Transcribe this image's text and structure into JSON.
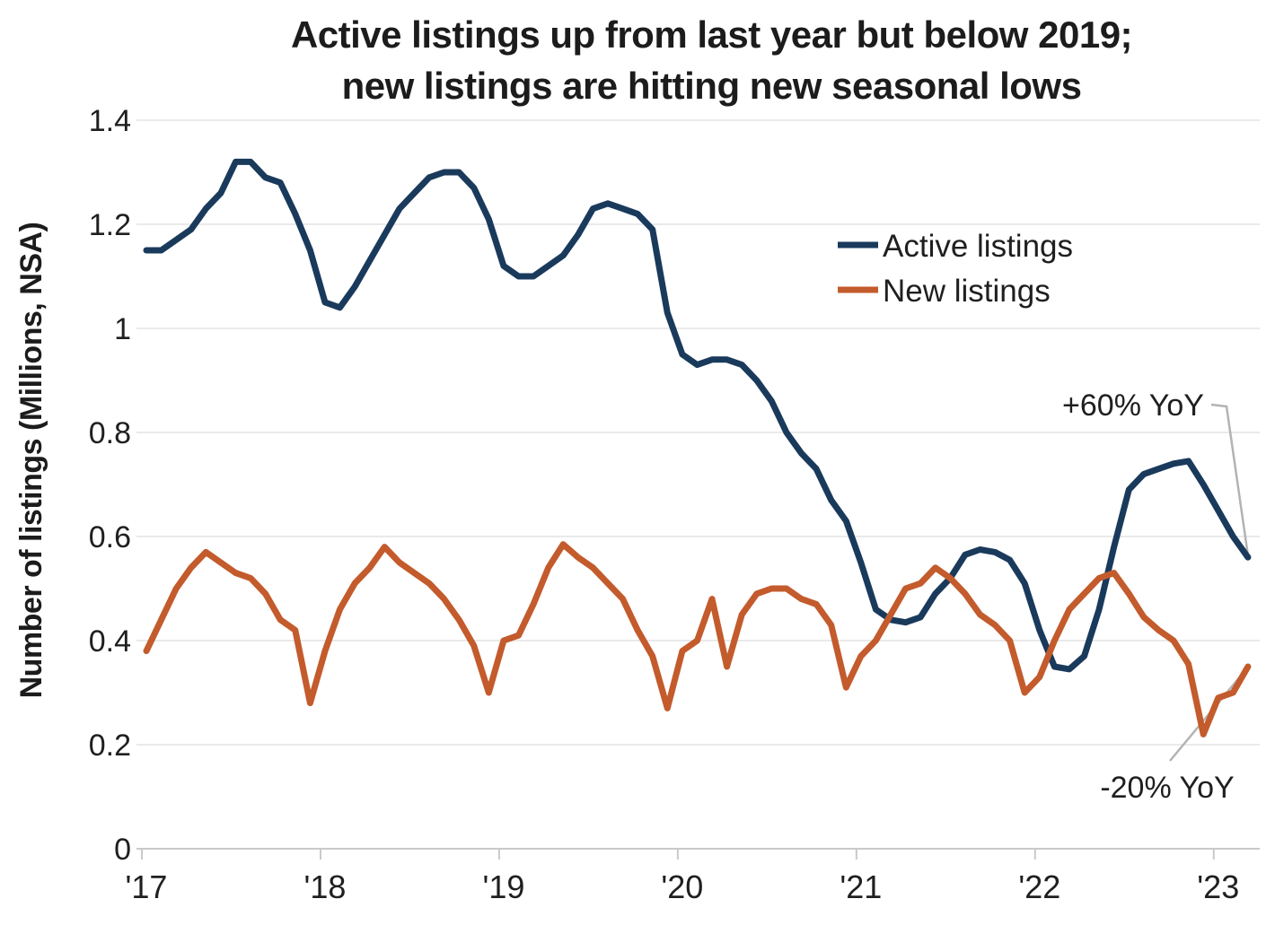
{
  "title": {
    "line1": "Active listings up from last year but below 2019;",
    "line2": "new listings are hitting new seasonal lows"
  },
  "y_axis": {
    "label": "Number of listings (Millions, NSA)",
    "tick_labels": [
      "1.4",
      "1.2",
      "1",
      "0.8",
      "0.6",
      "0.4",
      "0.2",
      "0"
    ],
    "tick_values": [
      1.4,
      1.2,
      1,
      0.8,
      0.6,
      0.4,
      0.2,
      0
    ]
  },
  "x_axis": {
    "tick_labels": [
      "'17",
      "'18",
      "'19",
      "'20",
      "'21",
      "'22",
      "'23"
    ]
  },
  "colors": {
    "active_listings": "#1a3a5c",
    "new_listings": "#c35b2c",
    "gridline": "#eaeaea",
    "axis": "#c9c9c9",
    "callout": "#b3b3b3",
    "text": "#1c1c1c"
  },
  "chart_data": {
    "type": "line",
    "frequency": "monthly",
    "x_start": "2017-01",
    "x_end": "2023-03",
    "title": "Active listings up from last year but below 2019; new listings are hitting new seasonal lows",
    "ylabel": "Number of listings (Millions, NSA)",
    "ylim": [
      0,
      1.4
    ],
    "grid": true,
    "legend_position": "upper right",
    "x_tick_labels": [
      "'17",
      "'18",
      "'19",
      "'20",
      "'21",
      "'22",
      "'23"
    ],
    "series": [
      {
        "name": "Active listings",
        "color": "#1a3a5c",
        "values": [
          1.15,
          1.15,
          1.17,
          1.19,
          1.23,
          1.26,
          1.32,
          1.32,
          1.29,
          1.28,
          1.22,
          1.15,
          1.05,
          1.04,
          1.08,
          1.13,
          1.18,
          1.23,
          1.26,
          1.29,
          1.3,
          1.3,
          1.27,
          1.21,
          1.12,
          1.1,
          1.1,
          1.12,
          1.14,
          1.18,
          1.23,
          1.24,
          1.23,
          1.22,
          1.19,
          1.03,
          0.95,
          0.93,
          0.94,
          0.94,
          0.93,
          0.9,
          0.86,
          0.8,
          0.76,
          0.73,
          0.67,
          0.63,
          0.55,
          0.46,
          0.44,
          0.435,
          0.445,
          0.49,
          0.52,
          0.565,
          0.575,
          0.57,
          0.555,
          0.51,
          0.42,
          0.35,
          0.345,
          0.37,
          0.46,
          0.58,
          0.69,
          0.72,
          0.73,
          0.74,
          0.745,
          0.7,
          0.65,
          0.6,
          0.56
        ]
      },
      {
        "name": "New listings",
        "color": "#c35b2c",
        "values": [
          0.38,
          0.44,
          0.5,
          0.54,
          0.57,
          0.55,
          0.53,
          0.52,
          0.49,
          0.44,
          0.42,
          0.28,
          0.38,
          0.46,
          0.51,
          0.54,
          0.58,
          0.55,
          0.53,
          0.51,
          0.48,
          0.44,
          0.39,
          0.3,
          0.4,
          0.41,
          0.47,
          0.54,
          0.585,
          0.56,
          0.54,
          0.51,
          0.48,
          0.42,
          0.37,
          0.27,
          0.38,
          0.4,
          0.48,
          0.35,
          0.45,
          0.49,
          0.5,
          0.5,
          0.48,
          0.47,
          0.43,
          0.31,
          0.37,
          0.4,
          0.45,
          0.5,
          0.51,
          0.54,
          0.52,
          0.49,
          0.45,
          0.43,
          0.4,
          0.3,
          0.33,
          0.4,
          0.46,
          0.49,
          0.52,
          0.53,
          0.49,
          0.445,
          0.42,
          0.4,
          0.355,
          0.22,
          0.29,
          0.3,
          0.35
        ]
      }
    ],
    "annotations": [
      {
        "text": "+60% YoY",
        "points_to": "end of Active listings line"
      },
      {
        "text": "-20% YoY",
        "points_to": "end of New listings line"
      }
    ]
  }
}
